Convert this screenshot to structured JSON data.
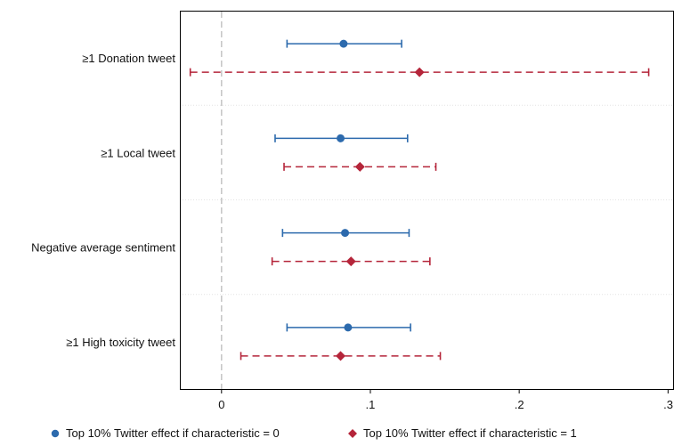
{
  "chart_data": {
    "type": "scatter",
    "subtype": "coefficient-plot",
    "categories": [
      "≥1 Donation tweet",
      "≥1 Local tweet",
      "Negative average sentiment",
      "≥1 High toxicity tweet"
    ],
    "series": [
      {
        "name": "Top 10% Twitter effect if characteristic = 0",
        "color": "#2c6aad",
        "marker": "circle",
        "line_style": "solid",
        "estimates": [
          0.082,
          0.08,
          0.083,
          0.085
        ],
        "ci_low": [
          0.044,
          0.036,
          0.041,
          0.044
        ],
        "ci_high": [
          0.121,
          0.125,
          0.126,
          0.127
        ]
      },
      {
        "name": "Top 10% Twitter effect if characteristic = 1",
        "color": "#b5253a",
        "marker": "diamond",
        "line_style": "dashed",
        "estimates": [
          0.133,
          0.093,
          0.087,
          0.08
        ],
        "ci_low": [
          -0.021,
          0.042,
          0.034,
          0.013
        ],
        "ci_high": [
          0.287,
          0.144,
          0.14,
          0.147
        ]
      }
    ],
    "x_ticks": [
      {
        "value": 0,
        "label": "0"
      },
      {
        "value": 0.1,
        "label": ".1"
      },
      {
        "value": 0.2,
        "label": ".2"
      },
      {
        "value": 0.3,
        "label": ".3"
      }
    ],
    "xlim": [
      -0.028,
      0.304
    ],
    "reference_line": {
      "x": 0,
      "color": "#c8c8c8",
      "style": "dashed"
    },
    "grid": "horizontal dotted between categories",
    "legend_position": "bottom",
    "title": "",
    "xlabel": "",
    "ylabel": ""
  }
}
